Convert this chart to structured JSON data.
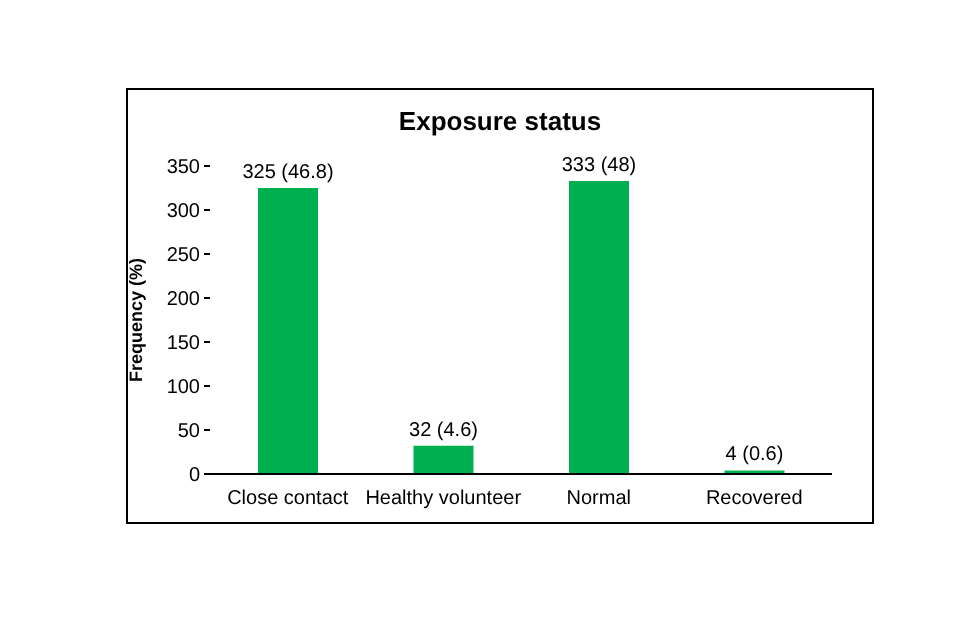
{
  "chart_data": {
    "type": "bar",
    "title": "Exposure status",
    "ylabel": "Frequency (%)",
    "categories": [
      "Close contact",
      "Healthy volunteer",
      "Normal",
      "Recovered"
    ],
    "values": [
      325,
      32,
      333,
      4
    ],
    "value_labels": [
      "325 (46.8)",
      "32 (4.6)",
      "333 (48)",
      "4 (0.6)"
    ],
    "color": "#00b050",
    "ylim": [
      0,
      350
    ],
    "yticks": [
      0,
      50,
      100,
      150,
      200,
      250,
      300,
      350
    ],
    "grid": false,
    "legend": false
  }
}
